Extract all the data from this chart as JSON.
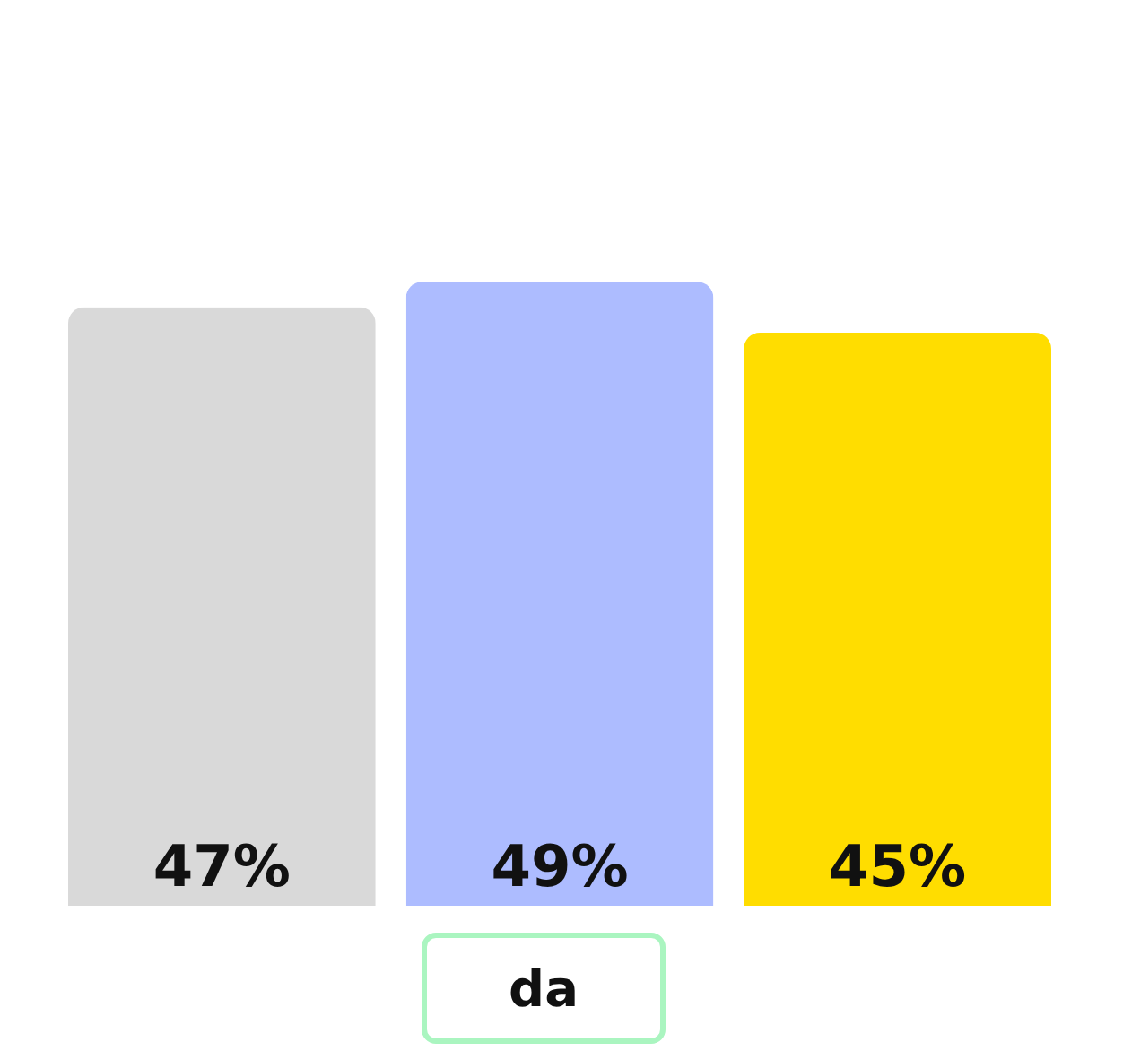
{
  "chart_data": {
    "type": "bar",
    "xlabel": "da",
    "categories": [
      null,
      null,
      null
    ],
    "values": [
      47,
      49,
      45
    ],
    "colors": [
      "#d9d9d9",
      "#adbcff",
      "#ffdd00"
    ],
    "data_labels": true,
    "value_labels": [
      "47%",
      "49%",
      "45%"
    ]
  }
}
